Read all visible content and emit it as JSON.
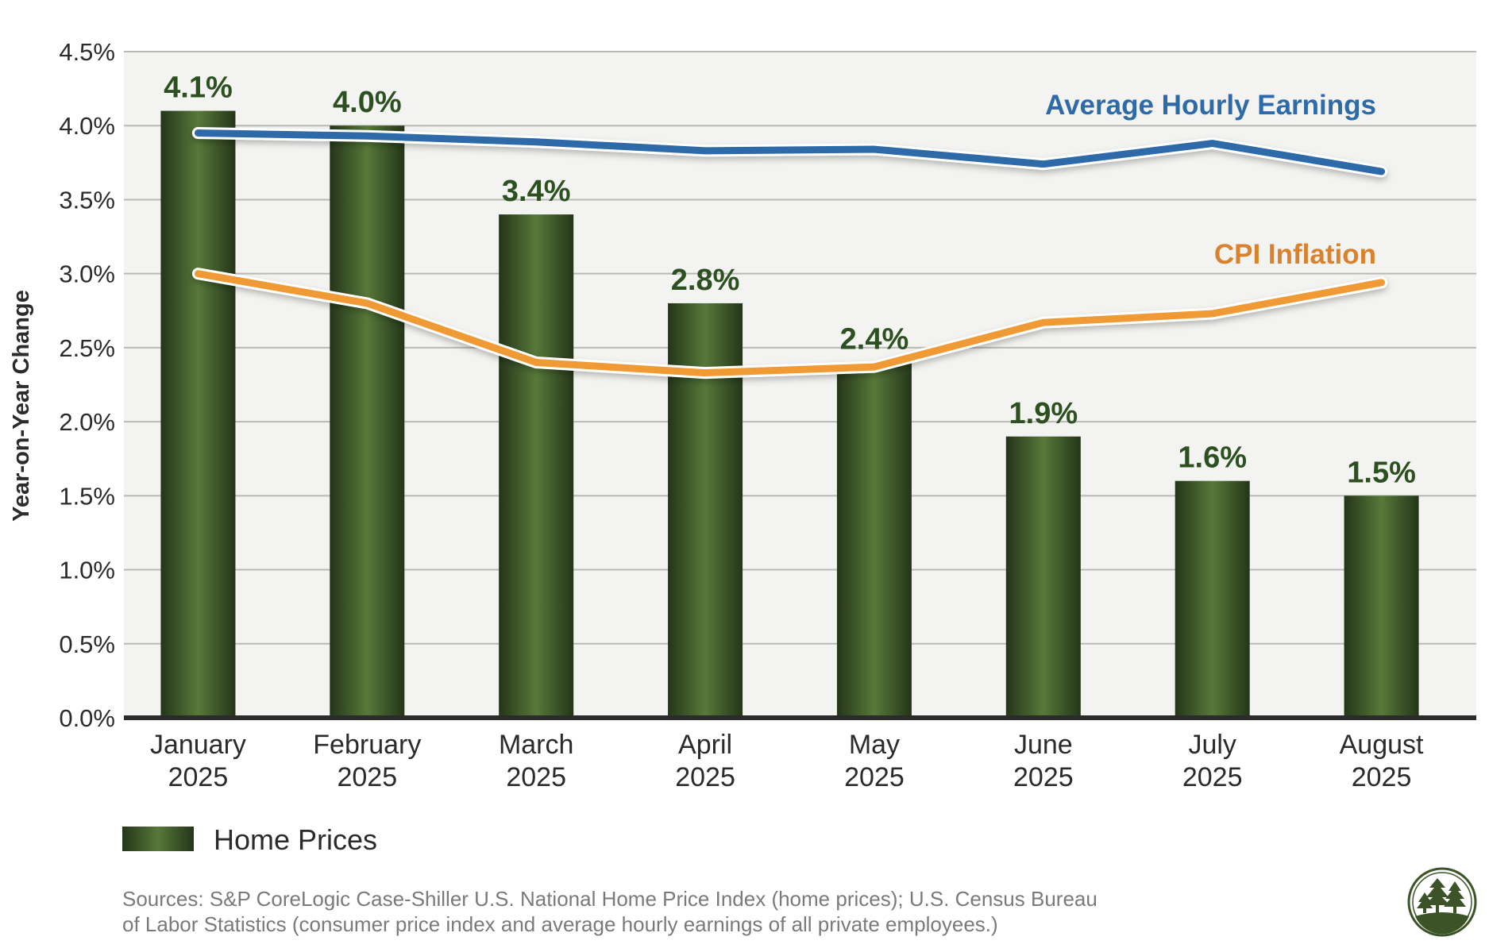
{
  "chart_data": {
    "type": "bar",
    "ylabel": "Year-on-Year Change",
    "ylim": [
      0,
      4.5
    ],
    "yticks": [
      "0.0%",
      "0.5%",
      "1.0%",
      "1.5%",
      "2.0%",
      "2.5%",
      "3.0%",
      "3.5%",
      "4.0%",
      "4.5%"
    ],
    "grid": true,
    "categories": [
      [
        "January",
        "2025"
      ],
      [
        "February",
        "2025"
      ],
      [
        "March",
        "2025"
      ],
      [
        "April",
        "2025"
      ],
      [
        "May",
        "2025"
      ],
      [
        "June",
        "2025"
      ],
      [
        "July",
        "2025"
      ],
      [
        "August",
        "2025"
      ]
    ],
    "bars": {
      "name": "Home Prices",
      "values": [
        4.1,
        4.0,
        3.4,
        2.8,
        2.4,
        1.9,
        1.6,
        1.5
      ],
      "labels": [
        "4.1%",
        "4.0%",
        "3.4%",
        "2.8%",
        "2.4%",
        "1.9%",
        "1.6%",
        "1.5%"
      ],
      "color": "#4a6b32"
    },
    "lines": [
      {
        "name": "Average Hourly Earnings",
        "values": [
          3.95,
          3.93,
          3.89,
          3.83,
          3.84,
          3.74,
          3.88,
          3.69
        ],
        "color": "#2e6aa8",
        "label_color": "#2e6aa8"
      },
      {
        "name": "CPI Inflation",
        "values": [
          3.0,
          2.8,
          2.4,
          2.33,
          2.37,
          2.67,
          2.73,
          2.94
        ],
        "color": "#f09a36",
        "label_color": "#d9822b"
      }
    ],
    "legend": "bottom-left"
  },
  "sources": [
    "Sources: S&P CoreLogic Case-Shiller U.S. National Home Price Index (home prices); U.S. Census Bureau",
    "of Labor Statistics (consumer price index and average hourly earnings of all private employees.)"
  ],
  "logo": "tree-logo-icon"
}
